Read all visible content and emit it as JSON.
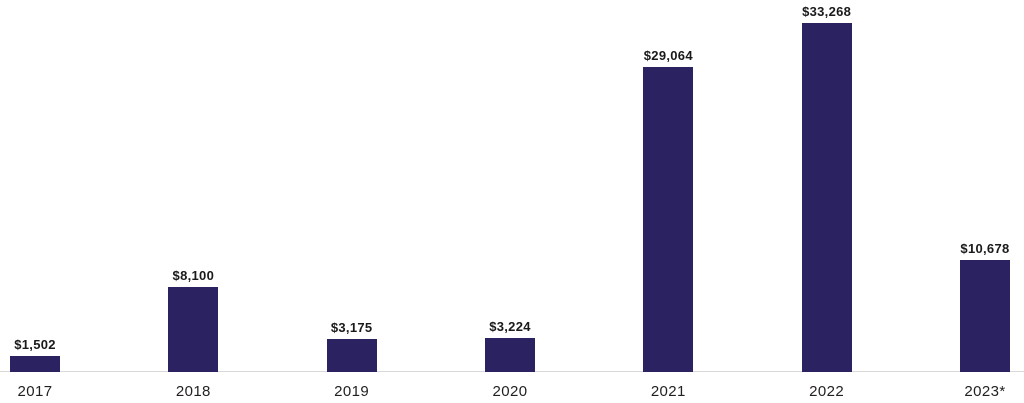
{
  "chart_data": {
    "type": "bar",
    "categories": [
      "2017",
      "2018",
      "2019",
      "2020",
      "2021",
      "2022",
      "2023*"
    ],
    "values": [
      1502,
      8100,
      3175,
      3224,
      29064,
      33268,
      10678
    ],
    "value_labels": [
      "$1,502",
      "$8,100",
      "$3,175",
      "$3,224",
      "$29,064",
      "$33,268",
      "$10,678"
    ],
    "title": "",
    "xlabel": "",
    "ylabel": "",
    "ylim": [
      0,
      35450
    ],
    "grid": false,
    "legend": "none",
    "colors": {
      "bar": "#2a2261",
      "axis_line": "#d9d9d9",
      "value_label_text": "#1a1a1a",
      "tick_label_text": "#231f20",
      "background": "#ffffff"
    }
  }
}
